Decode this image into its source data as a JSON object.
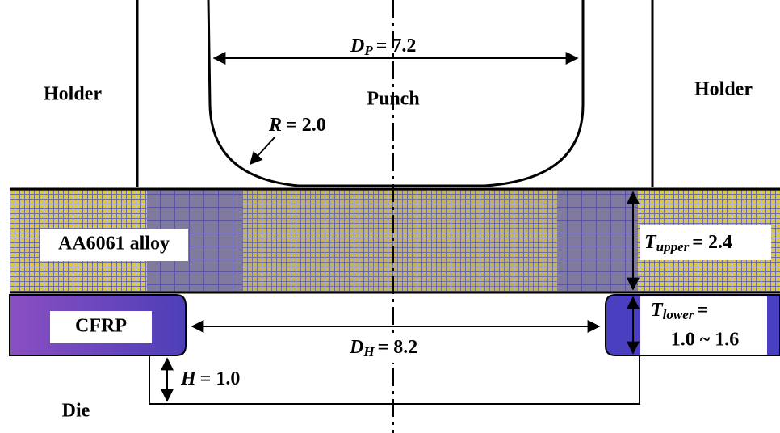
{
  "labels": {
    "holder_left": "Holder",
    "holder_right": "Holder",
    "punch": "Punch",
    "punch_diameter": {
      "symbol": "D",
      "subscript": "P",
      "value": "= 7.2"
    },
    "radius": {
      "symbol": "R",
      "value": "= 2.0"
    },
    "upper_material": "AA6061 alloy",
    "upper_thickness": {
      "symbol": "T",
      "subscript": "upper",
      "value": "= 2.4"
    },
    "lower_material": "CFRP",
    "lower_thickness": {
      "symbol": "T",
      "subscript": "lower",
      "value": "=",
      "range": "1.0 ~ 1.6"
    },
    "hole_diameter": {
      "symbol": "D",
      "subscript": "H",
      "value": "= 8.2"
    },
    "height": {
      "symbol": "H",
      "value": "= 1.0"
    },
    "die": "Die"
  }
}
